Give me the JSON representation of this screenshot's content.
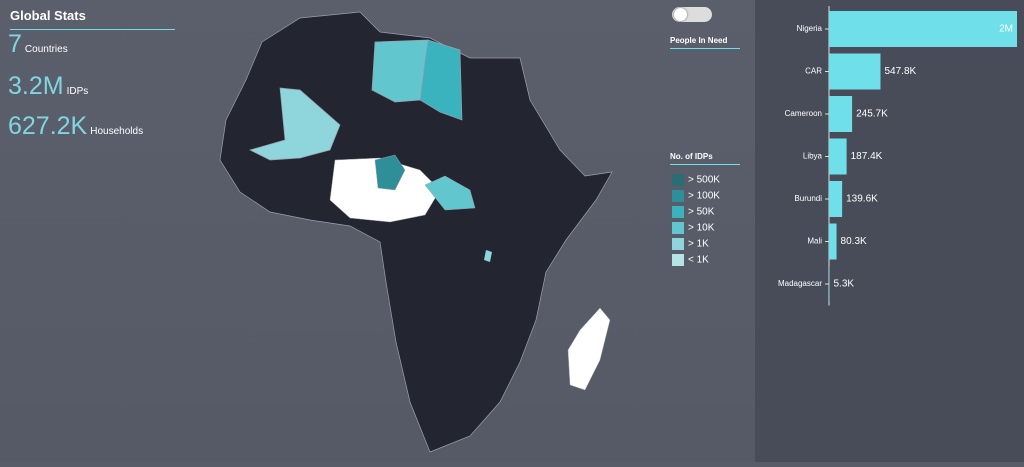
{
  "stats": {
    "title": "Global Stats",
    "items": [
      {
        "value": "7",
        "label": "Countries"
      },
      {
        "value": "3.2M",
        "label": "IDPs"
      },
      {
        "value": "627.2K",
        "label": "Households"
      }
    ]
  },
  "toggle": {
    "label": "People In Need"
  },
  "legend": {
    "title": "No. of IDPs",
    "items": [
      {
        "label": "> 500K",
        "color": "#2b6d74"
      },
      {
        "label": "> 100K",
        "color": "#2f8f98"
      },
      {
        "label": "> 50K",
        "color": "#3ab3be"
      },
      {
        "label": "> 10K",
        "color": "#62c6cf"
      },
      {
        "label": "> 1K",
        "color": "#8ed5dc"
      },
      {
        "label": "< 1K",
        "color": "#b4e4e8"
      }
    ]
  },
  "chart_data": {
    "type": "bar",
    "categories": [
      "Nigeria",
      "CAR",
      "Cameroon",
      "Libya",
      "Burundi",
      "Mali",
      "Madagascar"
    ],
    "values": [
      2000000,
      547800,
      245700,
      187400,
      139600,
      80300,
      5300
    ],
    "value_labels": [
      "2M",
      "547.8K",
      "245.7K",
      "187.4K",
      "139.6K",
      "80.3K",
      "5.3K"
    ],
    "color": "#6fdfea"
  }
}
